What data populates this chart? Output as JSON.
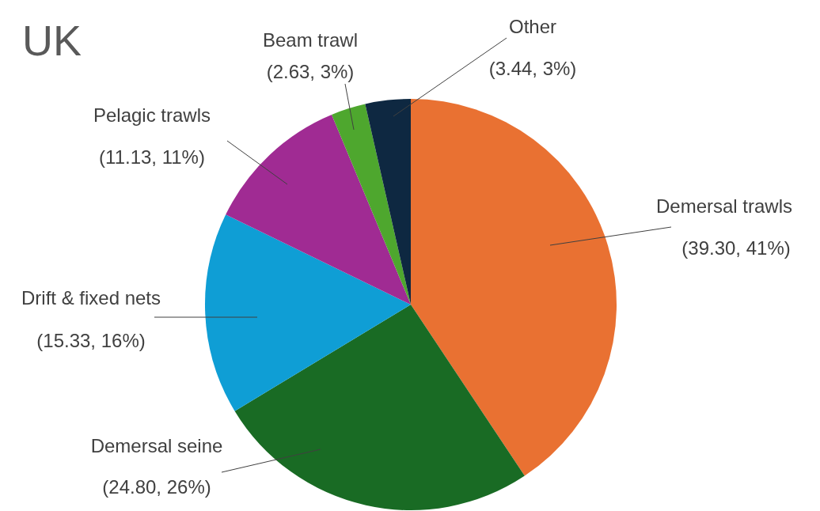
{
  "chart_data": {
    "type": "pie",
    "title": "UK",
    "categories": [
      "Demersal trawls",
      "Demersal seine",
      "Drift & fixed nets",
      "Pelagic trawls",
      "Beam trawl",
      "Other"
    ],
    "values": [
      39.3,
      24.8,
      15.33,
      11.13,
      2.63,
      3.44
    ],
    "colors": [
      "#e97132",
      "#196b24",
      "#0f9ed5",
      "#a02b93",
      "#4ea72e",
      "#0e2841"
    ],
    "value_labels": [
      "(39.30, 41%)",
      "(24.80, 26%)",
      "(15.33, 16%)",
      "(11.13, 11%)",
      "(2.63, 3%)",
      "(3.44, 3%)"
    ]
  }
}
